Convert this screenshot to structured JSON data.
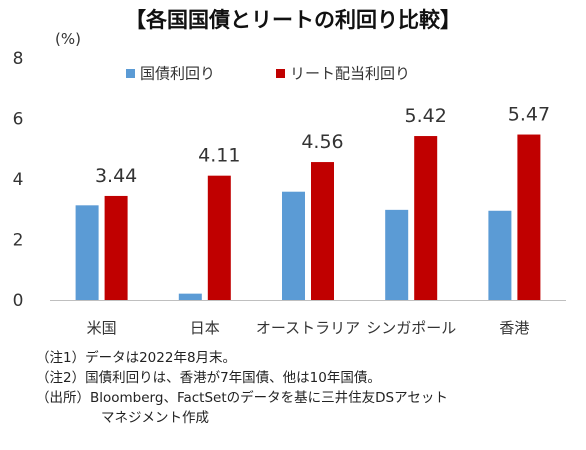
{
  "chart_data": {
    "type": "bar",
    "title": "【各国国債とリートの利回り比較】",
    "ylabel": "(%)",
    "ylim": [
      0,
      8
    ],
    "yticks": [
      0,
      2,
      4,
      6,
      8
    ],
    "grid": false,
    "legend": "top",
    "categories": [
      "米国",
      "日本",
      "オーストラリア",
      "シンガポール",
      "香港"
    ],
    "series": [
      {
        "name": "国債利回り",
        "color": "#5b9bd5",
        "values": [
          3.13,
          0.21,
          3.58,
          2.98,
          2.95
        ]
      },
      {
        "name": "リート配当利回り",
        "color": "#c00000",
        "values": [
          3.44,
          4.11,
          4.56,
          5.42,
          5.47
        ],
        "labels": [
          "3.44",
          "4.11",
          "4.56",
          "5.42",
          "5.47"
        ]
      }
    ]
  },
  "notes": [
    "（注1）データは2022年8月末。",
    "（注2）国債利回りは、香港が7年国債、他は10年国債。",
    "（出所）Bloomberg、FactSetのデータを基に三井住友DSアセット",
    "マネジメント作成"
  ]
}
